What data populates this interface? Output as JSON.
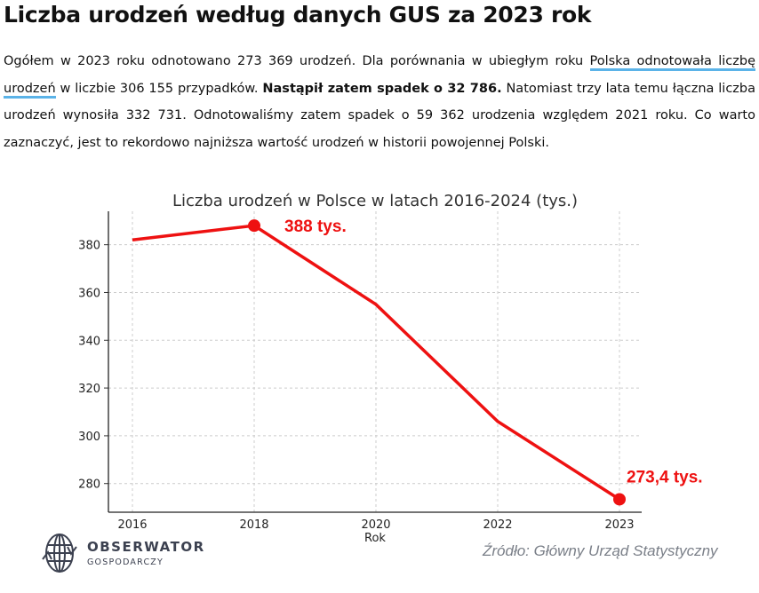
{
  "article": {
    "title": "Liczba urodzeń według danych GUS za 2023 rok",
    "p1": "Ogółem w 2023 roku odnotowano 273 369 urodzeń. Dla porównania w ubiegłym roku ",
    "link": "Polska odnotowała liczbę urodzeń",
    "p2": " w liczbie 306 155 przypadków. ",
    "bold": "Nastąpił zatem spadek o 32 786.",
    "p3": " Natomiast trzy lata temu łączna liczba urodzeń wynosiła 332 731. Odnotowaliśmy zatem spadek o 59 362 urodzenia względem 2021 roku. Co warto zaznaczyć, jest to rekordowo najniższa wartość urodzeń w historii powojennej Polski."
  },
  "chart_data": {
    "type": "line",
    "title": "Liczba urodzeń w Polsce w latach 2016-2024 (tys.)",
    "xlabel": "Rok",
    "ylabel": "",
    "categories": [
      "2016",
      "2018",
      "2020",
      "2022",
      "2023"
    ],
    "values": [
      382,
      388,
      355,
      306,
      273.4
    ],
    "ylim": [
      268,
      394
    ],
    "yticks": [
      280,
      300,
      320,
      340,
      360,
      380
    ],
    "grid": true,
    "color": "#ee1111",
    "annotations": [
      {
        "index": 1,
        "text": "388 tys."
      },
      {
        "index": 4,
        "text": "273,4 tys."
      }
    ]
  },
  "footer": {
    "logo_main": "OBSERWATOR",
    "logo_sub": "GOSPODARCZY",
    "source": "Źródło: Główny Urząd Statystyczny"
  }
}
